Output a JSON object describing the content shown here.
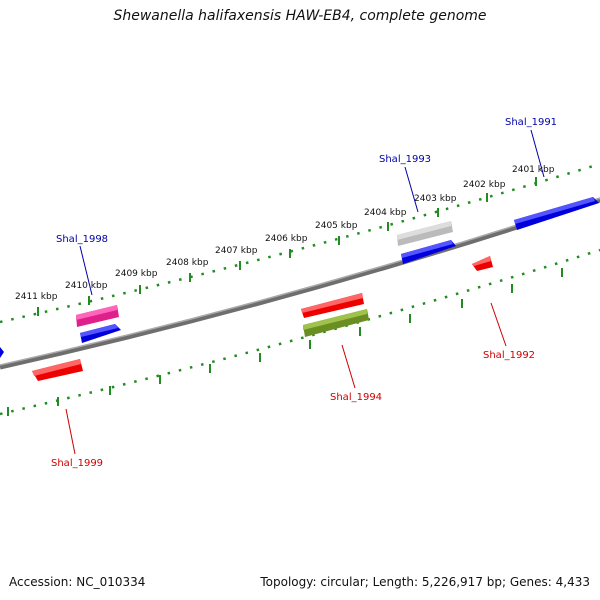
{
  "title": "Shewanella halifaxensis HAW-EB4, complete genome",
  "accession": "Accession: NC_010334",
  "topology": "Topology: circular; Length: 5,226,917 bp; Genes: 4,433",
  "scale_labels": [
    "2401 kbp",
    "2402 kbp",
    "2403 kbp",
    "2404 kbp",
    "2405 kbp",
    "2406 kbp",
    "2407 kbp",
    "2408 kbp",
    "2409 kbp",
    "2410 kbp",
    "2411 kbp"
  ],
  "genes": [
    {
      "name": "Shal_1991",
      "strand": "forward",
      "color": "#0000ee"
    },
    {
      "name": "Shal_1993",
      "strand": "forward",
      "color": "#0000ee"
    },
    {
      "name": "Shal_1998",
      "strand": "forward",
      "color": "#0000ee"
    },
    {
      "name": "Shal_1992",
      "strand": "reverse",
      "color": "#dd0000"
    },
    {
      "name": "Shal_1994",
      "strand": "reverse",
      "color": "#dd0000"
    },
    {
      "name": "Shal_1999",
      "strand": "reverse",
      "color": "#dd0000"
    }
  ],
  "colors": {
    "forward_gene": "#0000ee",
    "reverse_gene": "#ee0000",
    "pseudo_gene": "#c0c0c0",
    "rna_gene": "#ee2288",
    "misc_feature": "#6b8e23",
    "scale_ticks": "#228b22",
    "backbone": "#888888",
    "forward_label": "#0000aa",
    "reverse_label": "#cc0000"
  }
}
